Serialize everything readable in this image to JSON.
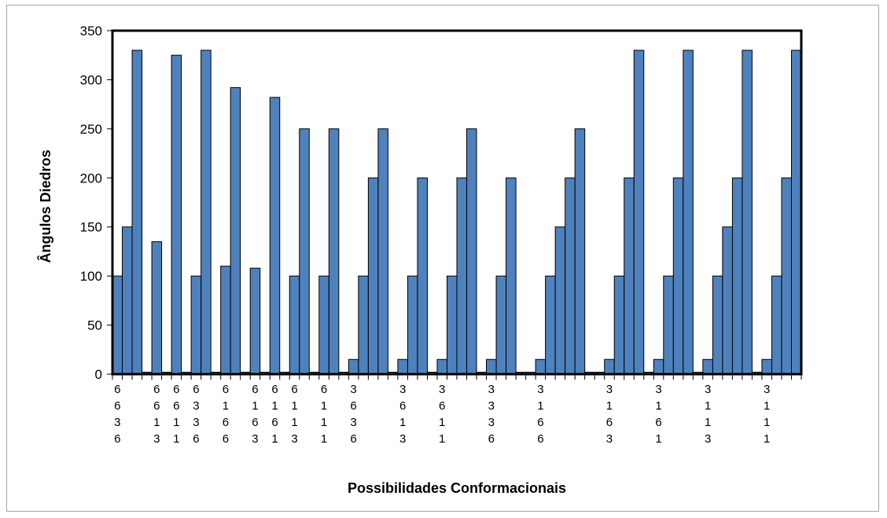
{
  "chart_data": {
    "type": "bar",
    "title": "",
    "xlabel": "Possibilidades Conformacionais",
    "ylabel": "Ângulos Diedros",
    "ylim": [
      0,
      350
    ],
    "yticks": [
      0,
      50,
      100,
      150,
      200,
      250,
      300,
      350
    ],
    "grid": false,
    "legend": "none",
    "bar_color": "#4f81bd",
    "bar_edge_color": "#000000",
    "values": [
      100,
      150,
      330,
      2,
      135,
      2,
      325,
      2,
      100,
      330,
      2,
      110,
      292,
      2,
      108,
      2,
      282,
      2,
      100,
      250,
      2,
      100,
      250,
      2,
      15,
      100,
      200,
      250,
      2,
      15,
      100,
      200,
      2,
      15,
      100,
      200,
      250,
      2,
      15,
      100,
      200,
      2,
      2,
      15,
      100,
      150,
      200,
      250,
      2,
      2,
      15,
      100,
      200,
      330,
      2,
      15,
      100,
      200,
      330,
      2,
      15,
      100,
      150,
      200,
      330,
      2,
      15,
      100,
      200,
      330
    ],
    "category_labels": [
      {
        "bar": 0,
        "lines": [
          "6",
          "6",
          "3",
          "6"
        ]
      },
      {
        "bar": 4,
        "lines": [
          "6",
          "6",
          "1",
          "3"
        ]
      },
      {
        "bar": 6,
        "lines": [
          "6",
          "6",
          "1",
          "1"
        ]
      },
      {
        "bar": 8,
        "lines": [
          "6",
          "3",
          "3",
          "6"
        ]
      },
      {
        "bar": 11,
        "lines": [
          "6",
          "1",
          "6",
          "6"
        ]
      },
      {
        "bar": 14,
        "lines": [
          "6",
          "1",
          "6",
          "3"
        ]
      },
      {
        "bar": 16,
        "lines": [
          "6",
          "1",
          "6",
          "1"
        ]
      },
      {
        "bar": 18,
        "lines": [
          "6",
          "1",
          "1",
          "3"
        ]
      },
      {
        "bar": 21,
        "lines": [
          "6",
          "1",
          "1",
          "1"
        ]
      },
      {
        "bar": 24,
        "lines": [
          "3",
          "6",
          "3",
          "6"
        ]
      },
      {
        "bar": 29,
        "lines": [
          "3",
          "6",
          "1",
          "3"
        ]
      },
      {
        "bar": 33,
        "lines": [
          "3",
          "6",
          "1",
          "1"
        ]
      },
      {
        "bar": 38,
        "lines": [
          "3",
          "3",
          "3",
          "6"
        ]
      },
      {
        "bar": 43,
        "lines": [
          "3",
          "1",
          "6",
          "6"
        ]
      },
      {
        "bar": 50,
        "lines": [
          "3",
          "1",
          "6",
          "3"
        ]
      },
      {
        "bar": 55,
        "lines": [
          "3",
          "1",
          "6",
          "1"
        ]
      },
      {
        "bar": 60,
        "lines": [
          "3",
          "1",
          "1",
          "3"
        ]
      },
      {
        "bar": 66,
        "lines": [
          "3",
          "1",
          "1",
          "1"
        ]
      }
    ]
  }
}
